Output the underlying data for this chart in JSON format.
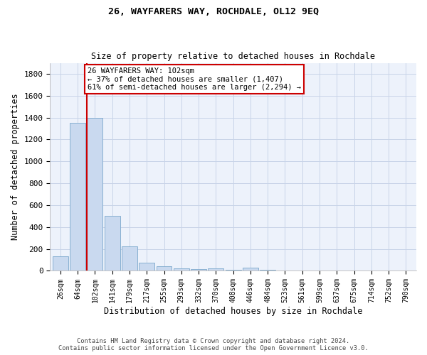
{
  "title1": "26, WAYFARERS WAY, ROCHDALE, OL12 9EQ",
  "title2": "Size of property relative to detached houses in Rochdale",
  "xlabel": "Distribution of detached houses by size in Rochdale",
  "ylabel": "Number of detached properties",
  "categories": [
    "26sqm",
    "64sqm",
    "102sqm",
    "141sqm",
    "179sqm",
    "217sqm",
    "255sqm",
    "293sqm",
    "332sqm",
    "370sqm",
    "408sqm",
    "446sqm",
    "484sqm",
    "523sqm",
    "561sqm",
    "599sqm",
    "637sqm",
    "675sqm",
    "714sqm",
    "752sqm",
    "790sqm"
  ],
  "values": [
    130,
    1350,
    1400,
    500,
    225,
    75,
    40,
    25,
    15,
    20,
    10,
    30,
    10,
    2,
    2,
    2,
    2,
    2,
    2,
    2,
    2
  ],
  "bar_color": "#c9d9ef",
  "bar_edge_color": "#7ba7cc",
  "highlight_bar_index": 2,
  "highlight_color": "#cc0000",
  "ylim": [
    0,
    1900
  ],
  "yticks": [
    0,
    200,
    400,
    600,
    800,
    1000,
    1200,
    1400,
    1600,
    1800
  ],
  "annotation_line1": "26 WAYFARERS WAY: 102sqm",
  "annotation_line2": "← 37% of detached houses are smaller (1,407)",
  "annotation_line3": "61% of semi-detached houses are larger (2,294) →",
  "annotation_box_color": "#ffffff",
  "annotation_box_edge": "#cc0000",
  "footer1": "Contains HM Land Registry data © Crown copyright and database right 2024.",
  "footer2": "Contains public sector information licensed under the Open Government Licence v3.0.",
  "grid_color": "#c8d4e8",
  "background_color": "#edf2fb"
}
